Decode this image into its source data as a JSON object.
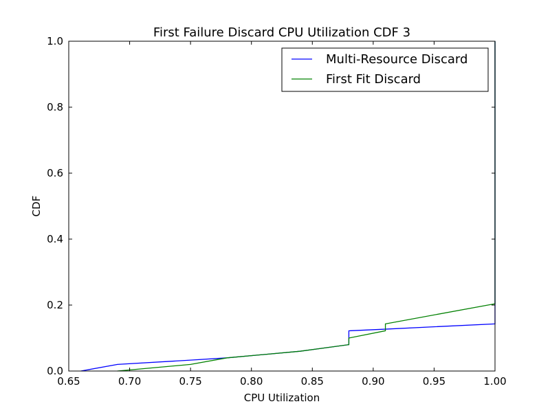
{
  "chart_data": {
    "type": "line",
    "title": "First Failure Discard CPU Utilization CDF 3",
    "xlabel": "CPU Utilization",
    "ylabel": "CDF",
    "xlim": [
      0.65,
      1.0
    ],
    "ylim": [
      0.0,
      1.0
    ],
    "xticks": [
      0.65,
      0.7,
      0.75,
      0.8,
      0.85,
      0.9,
      0.95,
      1.0
    ],
    "xtick_labels": [
      "0.65",
      "0.70",
      "0.75",
      "0.80",
      "0.85",
      "0.90",
      "0.95",
      "1.00"
    ],
    "yticks": [
      0.0,
      0.2,
      0.4,
      0.6,
      0.8,
      1.0
    ],
    "ytick_labels": [
      "0.0",
      "0.2",
      "0.4",
      "0.6",
      "0.8",
      "1.0"
    ],
    "grid": false,
    "legend_position": "upper right",
    "series": [
      {
        "name": "Multi-Resource Discard",
        "color": "#0000ff",
        "x": [
          0.66,
          0.69,
          0.75,
          0.78,
          0.84,
          0.88,
          0.88,
          0.91,
          0.91,
          1.0,
          1.0
        ],
        "y": [
          0.0,
          0.02,
          0.033,
          0.04,
          0.06,
          0.08,
          0.122,
          0.127,
          0.127,
          0.143,
          1.0
        ]
      },
      {
        "name": "First Fit Discard",
        "color": "#008000",
        "x": [
          0.69,
          0.75,
          0.78,
          0.84,
          0.88,
          0.88,
          0.91,
          0.91,
          1.0,
          1.0
        ],
        "y": [
          0.0,
          0.02,
          0.04,
          0.06,
          0.08,
          0.1,
          0.122,
          0.143,
          0.204,
          1.0
        ]
      }
    ]
  }
}
